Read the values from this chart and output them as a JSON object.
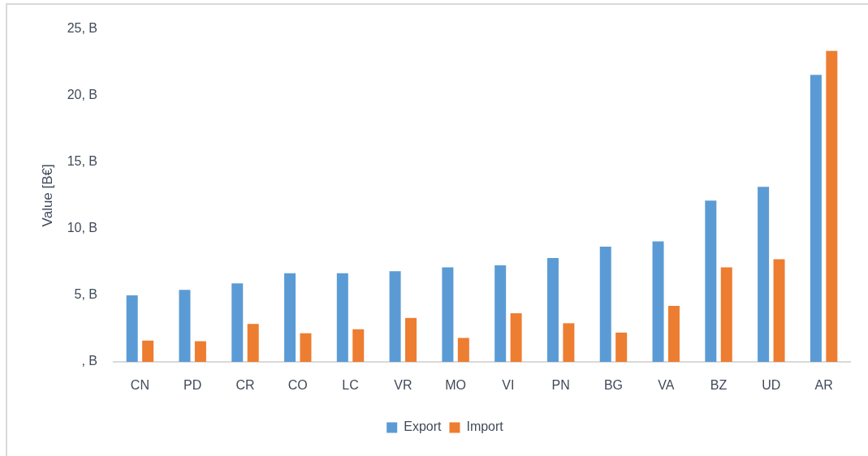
{
  "chart_data": {
    "type": "bar",
    "ylabel": "Value [B€]",
    "categories": [
      "CN",
      "PD",
      "CR",
      "CO",
      "LC",
      "VR",
      "MO",
      "VI",
      "PN",
      "BG",
      "VA",
      "BZ",
      "UD",
      "AR"
    ],
    "series": [
      {
        "name": "Export",
        "color": "#5b9bd5",
        "values": [
          5.0,
          5.4,
          5.9,
          6.65,
          6.65,
          6.8,
          7.1,
          7.25,
          7.8,
          8.65,
          9.05,
          12.1,
          13.15,
          21.55
        ]
      },
      {
        "name": "Import",
        "color": "#ed7d31",
        "values": [
          1.6,
          1.55,
          2.85,
          2.15,
          2.45,
          3.3,
          1.8,
          3.65,
          2.9,
          2.2,
          4.2,
          7.1,
          7.7,
          23.35
        ]
      }
    ],
    "ylim": [
      0,
      25
    ],
    "yticks": [
      {
        "value": 0,
        "label": ", B"
      },
      {
        "value": 5,
        "label": "5, B"
      },
      {
        "value": 10,
        "label": "10, B"
      },
      {
        "value": 15,
        "label": "15, B"
      },
      {
        "value": 20,
        "label": "20, B"
      },
      {
        "value": 25,
        "label": "25, B"
      }
    ],
    "grid": false,
    "legend": "bottom"
  }
}
